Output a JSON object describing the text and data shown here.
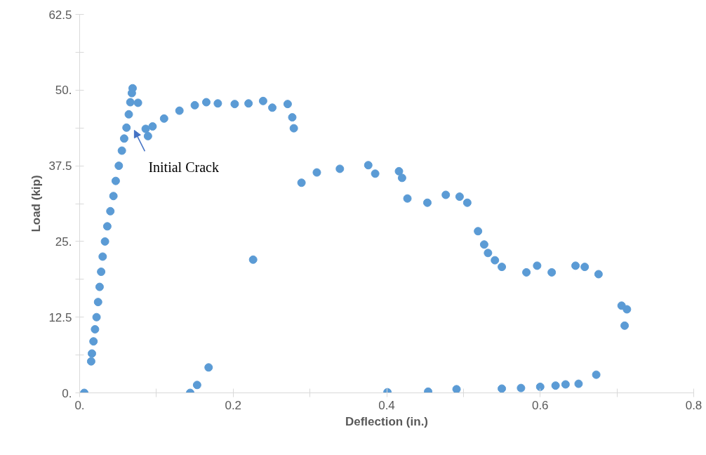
{
  "chart_data": {
    "type": "scatter",
    "xlabel": "Deflection (in.)",
    "ylabel": "Load (kip)",
    "xlim": [
      0,
      0.8
    ],
    "ylim": [
      0,
      62.5
    ],
    "xticks": [
      {
        "value": 0,
        "label": "0."
      },
      {
        "value": 0.1,
        "label": null
      },
      0.2,
      {
        "value": 0.3,
        "label": null
      },
      0.4,
      {
        "value": 0.5,
        "label": null
      },
      0.6,
      {
        "value": 0.7,
        "label": null
      },
      0.8
    ],
    "yticks": [
      {
        "value": 0,
        "label": "0."
      },
      {
        "value": 6.25,
        "label": null
      },
      12.5,
      {
        "value": 18.75,
        "label": null
      },
      {
        "value": 25,
        "label": "25."
      },
      {
        "value": 31.25,
        "label": null
      },
      37.5,
      {
        "value": 43.75,
        "label": null
      },
      {
        "value": 50,
        "label": "50."
      },
      {
        "value": 56.25,
        "label": null
      },
      62.5
    ],
    "grid": false,
    "marker": "circle",
    "annotations": [
      "Initial Crack"
    ],
    "series": [
      {
        "color": "#5b9bd5",
        "x": [
          0.006,
          0.015,
          0.016,
          0.018,
          0.02,
          0.022,
          0.024,
          0.026,
          0.028,
          0.03,
          0.033,
          0.036,
          0.04,
          0.044,
          0.047,
          0.051,
          0.055,
          0.058,
          0.061,
          0.064,
          0.066,
          0.068,
          0.069,
          0.076,
          0.086,
          0.089,
          0.095,
          0.11,
          0.13,
          0.15,
          0.165,
          0.18,
          0.202,
          0.22,
          0.239,
          0.251,
          0.271,
          0.277,
          0.279,
          0.226,
          0.289,
          0.309,
          0.339,
          0.376,
          0.385,
          0.416,
          0.42,
          0.427,
          0.453,
          0.477,
          0.495,
          0.505,
          0.519,
          0.527,
          0.532,
          0.541,
          0.55,
          0.582,
          0.596,
          0.615,
          0.646,
          0.658,
          0.676,
          0.706,
          0.713,
          0.71,
          0.144,
          0.153,
          0.168,
          0.401,
          0.454,
          0.491,
          0.55,
          0.575,
          0.6,
          0.62,
          0.633,
          0.65,
          0.673
        ],
        "values": [
          0,
          5.2,
          6.5,
          8.5,
          10.5,
          12.5,
          15,
          17.5,
          20,
          22.5,
          25,
          27.5,
          30,
          32.5,
          35,
          37.5,
          40,
          42,
          43.8,
          46,
          48,
          49.5,
          50.3,
          47.9,
          43.6,
          42.4,
          44,
          45.3,
          46.6,
          47.5,
          48.0,
          47.8,
          47.7,
          47.8,
          48.2,
          47.1,
          47.7,
          45.5,
          43.7,
          22.0,
          34.7,
          36.4,
          37.0,
          37.6,
          36.2,
          36.6,
          35.5,
          32.1,
          31.4,
          32.7,
          32.4,
          31.4,
          26.7,
          24.5,
          23.1,
          21.9,
          20.8,
          19.9,
          21.0,
          19.9,
          21.0,
          20.8,
          19.6,
          14.4,
          13.8,
          11.1,
          0,
          1.3,
          4.2,
          0.1,
          0.2,
          0.6,
          0.7,
          0.8,
          1.0,
          1.2,
          1.4,
          1.5,
          3.0
        ]
      }
    ]
  }
}
